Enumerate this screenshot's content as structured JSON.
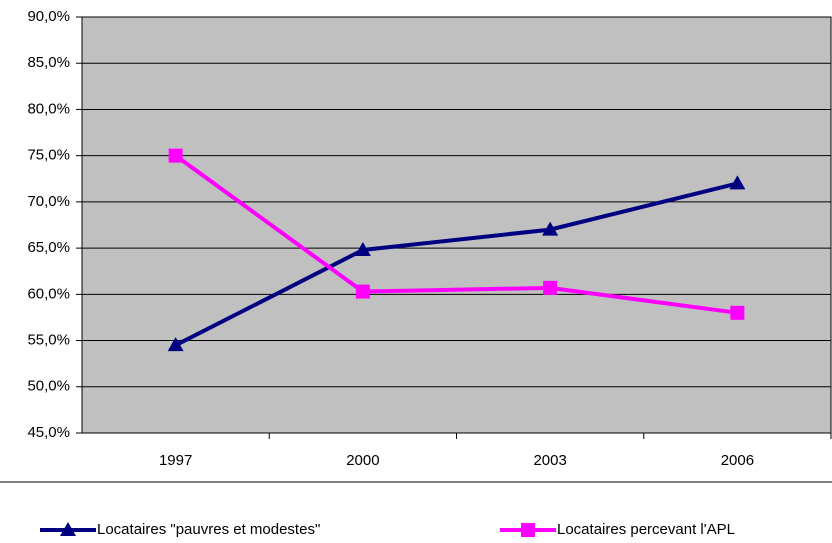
{
  "chart_data": {
    "type": "line",
    "categories": [
      "1997",
      "2000",
      "2003",
      "2006"
    ],
    "series": [
      {
        "name": "Locataires \"pauvres et modestes\"",
        "color": "#000080",
        "marker": "triangle",
        "values": [
          54.5,
          64.8,
          67.0,
          72.0
        ]
      },
      {
        "name": "Locataires percevant l'APL",
        "color": "#ff00ff",
        "marker": "square",
        "values": [
          75.0,
          60.3,
          60.7,
          58.0
        ]
      }
    ],
    "ylim": [
      45,
      90
    ],
    "yticks": [
      {
        "value": 45,
        "label": "45,0%"
      },
      {
        "value": 50,
        "label": "50,0%"
      },
      {
        "value": 55,
        "label": "55,0%"
      },
      {
        "value": 60,
        "label": "60,0%"
      },
      {
        "value": 65,
        "label": "65,0%"
      },
      {
        "value": 70,
        "label": "70,0%"
      },
      {
        "value": 75,
        "label": "75,0%"
      },
      {
        "value": 80,
        "label": "80,0%"
      },
      {
        "value": 85,
        "label": "85,0%"
      },
      {
        "value": 90,
        "label": "90,0%"
      }
    ],
    "grid": true,
    "legend": "bottom",
    "background": "#c0c0c0"
  }
}
